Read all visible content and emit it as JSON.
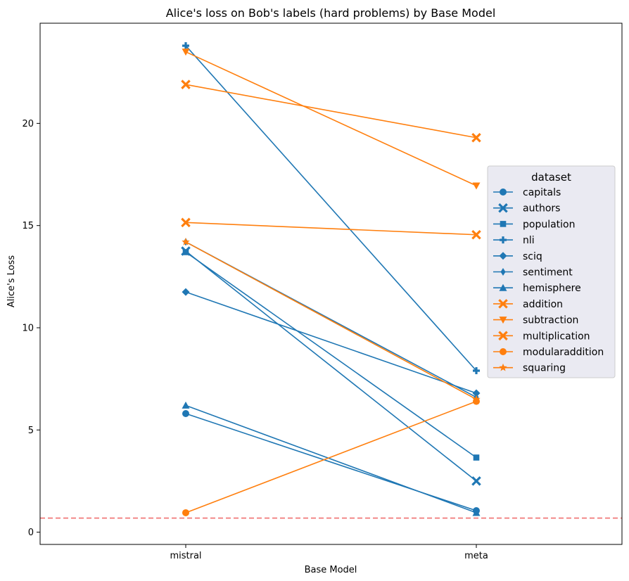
{
  "chart_data": {
    "type": "line",
    "title": "Alice's loss on Bob's labels (hard problems) by Base Model",
    "xlabel": "Base Model",
    "ylabel": "Alice's Loss",
    "categories": [
      "mistral",
      "meta"
    ],
    "ylim": [
      -0.6,
      24.9
    ],
    "yticks": [
      0,
      5,
      10,
      15,
      20
    ],
    "grid": false,
    "legend": {
      "title": "dataset",
      "placement": "center-right"
    },
    "reference_line": {
      "y": 0.69,
      "color": "#f07070",
      "style": "dashed"
    },
    "colors": {
      "blue": "#1f77b4",
      "orange": "#ff7f0e"
    },
    "series": [
      {
        "name": "capitals",
        "values": [
          5.8,
          1.05
        ],
        "color": "#1f77b4",
        "marker": "circle"
      },
      {
        "name": "authors",
        "values": [
          13.75,
          2.5
        ],
        "color": "#1f77b4",
        "marker": "x"
      },
      {
        "name": "population",
        "values": [
          13.7,
          3.65
        ],
        "color": "#1f77b4",
        "marker": "square"
      },
      {
        "name": "nli",
        "values": [
          23.8,
          7.9
        ],
        "color": "#1f77b4",
        "marker": "plus"
      },
      {
        "name": "sciq",
        "values": [
          11.75,
          6.8
        ],
        "color": "#1f77b4",
        "marker": "diamond"
      },
      {
        "name": "sentiment",
        "values": [
          14.2,
          6.6
        ],
        "color": "#1f77b4",
        "marker": "thin-diamond"
      },
      {
        "name": "hemisphere",
        "values": [
          6.2,
          0.95
        ],
        "color": "#1f77b4",
        "marker": "triangle-up"
      },
      {
        "name": "addition",
        "values": [
          15.15,
          14.55
        ],
        "color": "#ff7f0e",
        "marker": "x"
      },
      {
        "name": "subtraction",
        "values": [
          23.5,
          16.95
        ],
        "color": "#ff7f0e",
        "marker": "triangle-down"
      },
      {
        "name": "multiplication",
        "values": [
          21.9,
          19.3
        ],
        "color": "#ff7f0e",
        "marker": "x"
      },
      {
        "name": "modularaddition",
        "values": [
          0.95,
          6.4
        ],
        "color": "#ff7f0e",
        "marker": "circle"
      },
      {
        "name": "squaring",
        "values": [
          14.2,
          6.5
        ],
        "color": "#ff7f0e",
        "marker": "star"
      }
    ]
  }
}
